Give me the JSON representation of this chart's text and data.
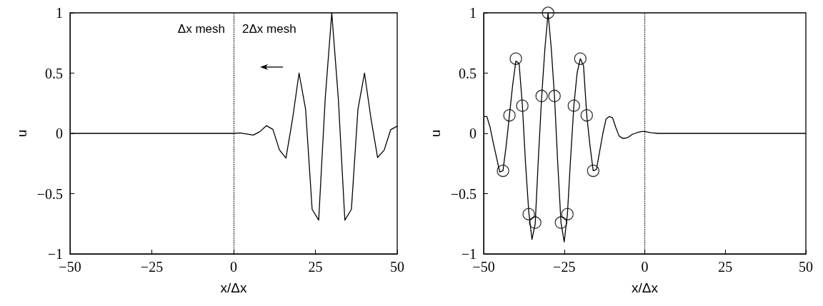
{
  "chart_data": [
    {
      "type": "line",
      "xlabel": "x/Δx",
      "ylabel": "u",
      "xlim": [
        -50,
        50
      ],
      "xticks": [
        -50,
        -25,
        0,
        25,
        50
      ],
      "ylim": [
        -1,
        1
      ],
      "yticks": [
        -1,
        -0.5,
        0,
        0.5,
        1
      ],
      "grid": false,
      "marker": "none",
      "line_style": "solid",
      "annotations": [
        "Δx mesh",
        "2Δx mesh"
      ],
      "ref_lines": [
        {
          "axis": "x",
          "value": 0,
          "line_style": "dotted",
          "color": "#000000"
        }
      ],
      "series": [
        {
          "color": "#000000",
          "x": [
            -50,
            0,
            2,
            4,
            6,
            8,
            10,
            12,
            14,
            16,
            18,
            20,
            22,
            24,
            26,
            28,
            30,
            32,
            34,
            36,
            38,
            40,
            42,
            44,
            46,
            48,
            50
          ],
          "values": [
            0,
            0,
            0.004,
            -0.005,
            -0.014,
            0.014,
            0.064,
            0.033,
            -0.137,
            -0.205,
            0.117,
            0.5,
            0.2,
            -0.63,
            -0.72,
            0.29,
            1.0,
            0.29,
            -0.72,
            -0.63,
            0.2,
            0.5,
            0.12,
            -0.2,
            -0.14,
            0.03,
            0.06
          ]
        }
      ]
    },
    {
      "type": "line",
      "xlabel": "x/Δx",
      "ylabel": "u",
      "xlim": [
        -50,
        50
      ],
      "xticks": [
        -50,
        -25,
        0,
        25,
        50
      ],
      "ylim": [
        -1,
        1
      ],
      "yticks": [
        -1,
        -0.5,
        0,
        0.5,
        1
      ],
      "grid": false,
      "line_style": "solid",
      "ref_lines": [
        {
          "axis": "x",
          "value": 0,
          "line_style": "dotted",
          "color": "#000000"
        }
      ],
      "series": [
        {
          "color": "#000000",
          "marker": "none",
          "x": [
            -50,
            -49,
            -48,
            -47,
            -46,
            -45,
            -44,
            -43,
            -42,
            -41,
            -40,
            -39,
            -38,
            -37,
            -36,
            -35,
            -34,
            -33,
            -32,
            -31,
            -30,
            -29,
            -28,
            -27,
            -26,
            -25,
            -24,
            -23,
            -22,
            -21,
            -20,
            -19,
            -18,
            -17,
            -16,
            -15,
            -14,
            -13,
            -12,
            -11,
            -10,
            -9,
            -8,
            -7,
            -6,
            -5,
            -4,
            -3,
            -2,
            -1,
            0,
            2,
            4,
            50
          ],
          "values": [
            0.14,
            0.14,
            0.05,
            -0.08,
            -0.2,
            -0.32,
            -0.31,
            -0.1,
            0.15,
            0.4,
            0.6,
            0.58,
            0.24,
            -0.25,
            -0.65,
            -0.88,
            -0.75,
            -0.2,
            0.3,
            0.7,
            1.0,
            0.7,
            0.3,
            -0.25,
            -0.74,
            -0.9,
            -0.67,
            -0.2,
            0.23,
            0.5,
            0.62,
            0.56,
            0.15,
            -0.1,
            -0.31,
            -0.3,
            -0.15,
            0.0,
            0.12,
            0.14,
            0.13,
            0.05,
            -0.02,
            -0.04,
            -0.04,
            -0.03,
            -0.01,
            0.0,
            0.01,
            0.015,
            0.016,
            0.005,
            0,
            0
          ]
        },
        {
          "type": "scatter",
          "color": "#000000",
          "marker": "circle",
          "x": [
            -44,
            -42,
            -40,
            -38,
            -36,
            -34,
            -32,
            -30,
            -28,
            -26,
            -24,
            -22,
            -20,
            -18,
            -16
          ],
          "values": [
            -0.31,
            0.15,
            0.62,
            0.23,
            -0.67,
            -0.74,
            0.31,
            1.0,
            0.31,
            -0.74,
            -0.67,
            0.23,
            0.62,
            0.15,
            -0.31
          ]
        }
      ]
    }
  ]
}
